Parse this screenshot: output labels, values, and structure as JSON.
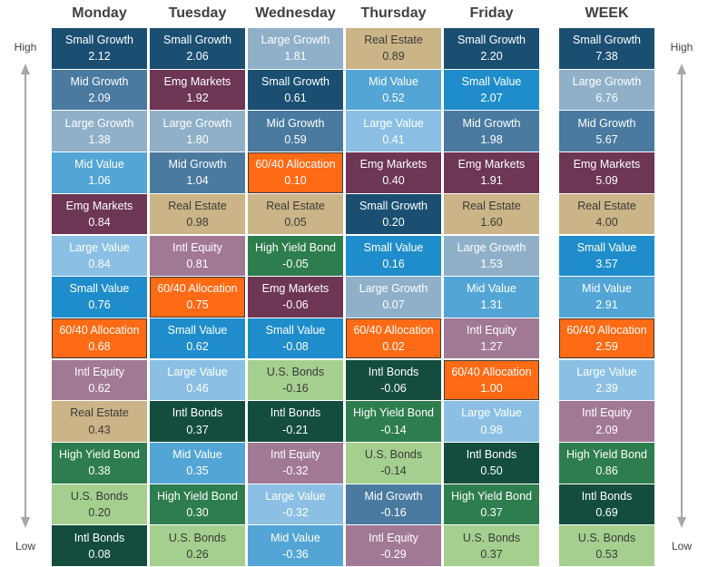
{
  "chart_data": {
    "type": "table",
    "side_labels": {
      "high": "High",
      "low": "Low"
    },
    "columns": [
      {
        "name": "Monday",
        "cells": [
          {
            "label": "Small Growth",
            "value": "2.12",
            "color": "#1b4f72"
          },
          {
            "label": "Mid Growth",
            "value": "2.09",
            "color": "#4a7aa0"
          },
          {
            "label": "Large Growth",
            "value": "1.38",
            "color": "#8fb0c8"
          },
          {
            "label": "Mid Value",
            "value": "1.06",
            "color": "#53a5d6"
          },
          {
            "label": "Emg Markets",
            "value": "0.84",
            "color": "#6c3654"
          },
          {
            "label": "Large Value",
            "value": "0.84",
            "color": "#8bc0e4"
          },
          {
            "label": "Small Value",
            "value": "0.76",
            "color": "#1f8dcb"
          },
          {
            "label": "60/40 Allocation",
            "value": "0.68",
            "color": "#ff6a14"
          },
          {
            "label": "Intl Equity",
            "value": "0.62",
            "color": "#a17995"
          },
          {
            "label": "Real Estate",
            "value": "0.43",
            "color": "#cbb487"
          },
          {
            "label": "High Yield Bond",
            "value": "0.38",
            "color": "#2e7d4e"
          },
          {
            "label": "U.S. Bonds",
            "value": "0.20",
            "color": "#a4cf8f"
          },
          {
            "label": "Intl Bonds",
            "value": "0.08",
            "color": "#144d3e"
          }
        ]
      },
      {
        "name": "Tuesday",
        "cells": [
          {
            "label": "Small Growth",
            "value": "2.06",
            "color": "#1b4f72"
          },
          {
            "label": "Emg Markets",
            "value": "1.92",
            "color": "#6c3654"
          },
          {
            "label": "Large Growth",
            "value": "1.80",
            "color": "#8fb0c8"
          },
          {
            "label": "Mid Growth",
            "value": "1.04",
            "color": "#4a7aa0"
          },
          {
            "label": "Real Estate",
            "value": "0.98",
            "color": "#cbb487"
          },
          {
            "label": "Intl Equity",
            "value": "0.81",
            "color": "#a17995"
          },
          {
            "label": "60/40 Allocation",
            "value": "0.75",
            "color": "#ff6a14"
          },
          {
            "label": "Small Value",
            "value": "0.62",
            "color": "#1f8dcb"
          },
          {
            "label": "Large Value",
            "value": "0.46",
            "color": "#8bc0e4"
          },
          {
            "label": "Intl Bonds",
            "value": "0.37",
            "color": "#144d3e"
          },
          {
            "label": "Mid Value",
            "value": "0.35",
            "color": "#53a5d6"
          },
          {
            "label": "High Yield Bond",
            "value": "0.30",
            "color": "#2e7d4e"
          },
          {
            "label": "U.S. Bonds",
            "value": "0.26",
            "color": "#a4cf8f"
          }
        ]
      },
      {
        "name": "Wednesday",
        "cells": [
          {
            "label": "Large Growth",
            "value": "1.81",
            "color": "#8fb0c8"
          },
          {
            "label": "Small Growth",
            "value": "0.61",
            "color": "#1b4f72"
          },
          {
            "label": "Mid Growth",
            "value": "0.59",
            "color": "#4a7aa0"
          },
          {
            "label": "60/40 Allocation",
            "value": "0.10",
            "color": "#ff6a14"
          },
          {
            "label": "Real Estate",
            "value": "0.05",
            "color": "#cbb487"
          },
          {
            "label": "High Yield Bond",
            "value": "-0.05",
            "color": "#2e7d4e"
          },
          {
            "label": "Emg Markets",
            "value": "-0.06",
            "color": "#6c3654"
          },
          {
            "label": "Small Value",
            "value": "-0.08",
            "color": "#1f8dcb"
          },
          {
            "label": "U.S. Bonds",
            "value": "-0.16",
            "color": "#a4cf8f"
          },
          {
            "label": "Intl Bonds",
            "value": "-0.21",
            "color": "#144d3e"
          },
          {
            "label": "Intl Equity",
            "value": "-0.32",
            "color": "#a17995"
          },
          {
            "label": "Large Value",
            "value": "-0.32",
            "color": "#8bc0e4"
          },
          {
            "label": "Mid Value",
            "value": "-0.36",
            "color": "#53a5d6"
          }
        ]
      },
      {
        "name": "Thursday",
        "cells": [
          {
            "label": "Real Estate",
            "value": "0.89",
            "color": "#cbb487"
          },
          {
            "label": "Mid Value",
            "value": "0.52",
            "color": "#53a5d6"
          },
          {
            "label": "Large Value",
            "value": "0.41",
            "color": "#8bc0e4"
          },
          {
            "label": "Emg Markets",
            "value": "0.40",
            "color": "#6c3654"
          },
          {
            "label": "Small Growth",
            "value": "0.20",
            "color": "#1b4f72"
          },
          {
            "label": "Small Value",
            "value": "0.16",
            "color": "#1f8dcb"
          },
          {
            "label": "Large Growth",
            "value": "0.07",
            "color": "#8fb0c8"
          },
          {
            "label": "60/40 Allocation",
            "value": "0.02",
            "color": "#ff6a14"
          },
          {
            "label": "Intl Bonds",
            "value": "-0.06",
            "color": "#144d3e"
          },
          {
            "label": "High Yield Bond",
            "value": "-0.14",
            "color": "#2e7d4e"
          },
          {
            "label": "U.S. Bonds",
            "value": "-0.14",
            "color": "#a4cf8f"
          },
          {
            "label": "Mid Growth",
            "value": "-0.16",
            "color": "#4a7aa0"
          },
          {
            "label": "Intl Equity",
            "value": "-0.29",
            "color": "#a17995"
          }
        ]
      },
      {
        "name": "Friday",
        "cells": [
          {
            "label": "Small Growth",
            "value": "2.20",
            "color": "#1b4f72"
          },
          {
            "label": "Small Value",
            "value": "2.07",
            "color": "#1f8dcb"
          },
          {
            "label": "Mid Growth",
            "value": "1.98",
            "color": "#4a7aa0"
          },
          {
            "label": "Emg Markets",
            "value": "1.91",
            "color": "#6c3654"
          },
          {
            "label": "Real Estate",
            "value": "1.60",
            "color": "#cbb487"
          },
          {
            "label": "Large Growth",
            "value": "1.53",
            "color": "#8fb0c8"
          },
          {
            "label": "Mid Value",
            "value": "1.31",
            "color": "#53a5d6"
          },
          {
            "label": "Intl Equity",
            "value": "1.27",
            "color": "#a17995"
          },
          {
            "label": "60/40 Allocation",
            "value": "1.00",
            "color": "#ff6a14"
          },
          {
            "label": "Large Value",
            "value": "0.98",
            "color": "#8bc0e4"
          },
          {
            "label": "Intl Bonds",
            "value": "0.50",
            "color": "#144d3e"
          },
          {
            "label": "High Yield Bond",
            "value": "0.37",
            "color": "#2e7d4e"
          },
          {
            "label": "U.S. Bonds",
            "value": "0.37",
            "color": "#a4cf8f"
          }
        ]
      },
      {
        "name": "WEEK",
        "cells": [
          {
            "label": "Small Growth",
            "value": "7.38",
            "color": "#1b4f72"
          },
          {
            "label": "Large Growth",
            "value": "6.76",
            "color": "#8fb0c8"
          },
          {
            "label": "Mid Growth",
            "value": "5.67",
            "color": "#4a7aa0"
          },
          {
            "label": "Emg Markets",
            "value": "5.09",
            "color": "#6c3654"
          },
          {
            "label": "Real Estate",
            "value": "4.00",
            "color": "#cbb487"
          },
          {
            "label": "Small Value",
            "value": "3.57",
            "color": "#1f8dcb"
          },
          {
            "label": "Mid Value",
            "value": "2.91",
            "color": "#53a5d6"
          },
          {
            "label": "60/40 Allocation",
            "value": "2.59",
            "color": "#ff6a14"
          },
          {
            "label": "Large Value",
            "value": "2.39",
            "color": "#8bc0e4"
          },
          {
            "label": "Intl Equity",
            "value": "2.09",
            "color": "#a17995"
          },
          {
            "label": "High Yield Bond",
            "value": "0.86",
            "color": "#2e7d4e"
          },
          {
            "label": "Intl Bonds",
            "value": "0.69",
            "color": "#144d3e"
          },
          {
            "label": "U.S. Bonds",
            "value": "0.53",
            "color": "#a4cf8f"
          }
        ]
      }
    ]
  }
}
